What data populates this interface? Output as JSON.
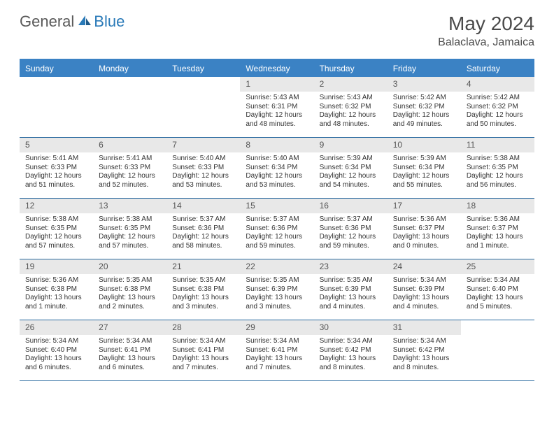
{
  "brand": {
    "part1": "General",
    "part2": "Blue"
  },
  "title": "May 2024",
  "location": "Balaclava, Jamaica",
  "colors": {
    "header_bar": "#3b82c4",
    "week_border": "#2a6aa0",
    "daynum_bg": "#e8e8e8",
    "text": "#333333",
    "title_text": "#4a4a4a",
    "brand_gray": "#5a5a5a",
    "brand_blue": "#2a7ab8"
  },
  "typography": {
    "title_fontsize": 28,
    "location_fontsize": 16,
    "dayname_fontsize": 12,
    "daynum_fontsize": 12,
    "body_fontsize": 10
  },
  "daynames": [
    "Sunday",
    "Monday",
    "Tuesday",
    "Wednesday",
    "Thursday",
    "Friday",
    "Saturday"
  ],
  "weeks": [
    [
      {
        "num": "",
        "sunrise": "",
        "sunset": "",
        "daylight": ""
      },
      {
        "num": "",
        "sunrise": "",
        "sunset": "",
        "daylight": ""
      },
      {
        "num": "",
        "sunrise": "",
        "sunset": "",
        "daylight": ""
      },
      {
        "num": "1",
        "sunrise": "Sunrise: 5:43 AM",
        "sunset": "Sunset: 6:31 PM",
        "daylight": "Daylight: 12 hours and 48 minutes."
      },
      {
        "num": "2",
        "sunrise": "Sunrise: 5:43 AM",
        "sunset": "Sunset: 6:32 PM",
        "daylight": "Daylight: 12 hours and 48 minutes."
      },
      {
        "num": "3",
        "sunrise": "Sunrise: 5:42 AM",
        "sunset": "Sunset: 6:32 PM",
        "daylight": "Daylight: 12 hours and 49 minutes."
      },
      {
        "num": "4",
        "sunrise": "Sunrise: 5:42 AM",
        "sunset": "Sunset: 6:32 PM",
        "daylight": "Daylight: 12 hours and 50 minutes."
      }
    ],
    [
      {
        "num": "5",
        "sunrise": "Sunrise: 5:41 AM",
        "sunset": "Sunset: 6:33 PM",
        "daylight": "Daylight: 12 hours and 51 minutes."
      },
      {
        "num": "6",
        "sunrise": "Sunrise: 5:41 AM",
        "sunset": "Sunset: 6:33 PM",
        "daylight": "Daylight: 12 hours and 52 minutes."
      },
      {
        "num": "7",
        "sunrise": "Sunrise: 5:40 AM",
        "sunset": "Sunset: 6:33 PM",
        "daylight": "Daylight: 12 hours and 53 minutes."
      },
      {
        "num": "8",
        "sunrise": "Sunrise: 5:40 AM",
        "sunset": "Sunset: 6:34 PM",
        "daylight": "Daylight: 12 hours and 53 minutes."
      },
      {
        "num": "9",
        "sunrise": "Sunrise: 5:39 AM",
        "sunset": "Sunset: 6:34 PM",
        "daylight": "Daylight: 12 hours and 54 minutes."
      },
      {
        "num": "10",
        "sunrise": "Sunrise: 5:39 AM",
        "sunset": "Sunset: 6:34 PM",
        "daylight": "Daylight: 12 hours and 55 minutes."
      },
      {
        "num": "11",
        "sunrise": "Sunrise: 5:38 AM",
        "sunset": "Sunset: 6:35 PM",
        "daylight": "Daylight: 12 hours and 56 minutes."
      }
    ],
    [
      {
        "num": "12",
        "sunrise": "Sunrise: 5:38 AM",
        "sunset": "Sunset: 6:35 PM",
        "daylight": "Daylight: 12 hours and 57 minutes."
      },
      {
        "num": "13",
        "sunrise": "Sunrise: 5:38 AM",
        "sunset": "Sunset: 6:35 PM",
        "daylight": "Daylight: 12 hours and 57 minutes."
      },
      {
        "num": "14",
        "sunrise": "Sunrise: 5:37 AM",
        "sunset": "Sunset: 6:36 PM",
        "daylight": "Daylight: 12 hours and 58 minutes."
      },
      {
        "num": "15",
        "sunrise": "Sunrise: 5:37 AM",
        "sunset": "Sunset: 6:36 PM",
        "daylight": "Daylight: 12 hours and 59 minutes."
      },
      {
        "num": "16",
        "sunrise": "Sunrise: 5:37 AM",
        "sunset": "Sunset: 6:36 PM",
        "daylight": "Daylight: 12 hours and 59 minutes."
      },
      {
        "num": "17",
        "sunrise": "Sunrise: 5:36 AM",
        "sunset": "Sunset: 6:37 PM",
        "daylight": "Daylight: 13 hours and 0 minutes."
      },
      {
        "num": "18",
        "sunrise": "Sunrise: 5:36 AM",
        "sunset": "Sunset: 6:37 PM",
        "daylight": "Daylight: 13 hours and 1 minute."
      }
    ],
    [
      {
        "num": "19",
        "sunrise": "Sunrise: 5:36 AM",
        "sunset": "Sunset: 6:38 PM",
        "daylight": "Daylight: 13 hours and 1 minute."
      },
      {
        "num": "20",
        "sunrise": "Sunrise: 5:35 AM",
        "sunset": "Sunset: 6:38 PM",
        "daylight": "Daylight: 13 hours and 2 minutes."
      },
      {
        "num": "21",
        "sunrise": "Sunrise: 5:35 AM",
        "sunset": "Sunset: 6:38 PM",
        "daylight": "Daylight: 13 hours and 3 minutes."
      },
      {
        "num": "22",
        "sunrise": "Sunrise: 5:35 AM",
        "sunset": "Sunset: 6:39 PM",
        "daylight": "Daylight: 13 hours and 3 minutes."
      },
      {
        "num": "23",
        "sunrise": "Sunrise: 5:35 AM",
        "sunset": "Sunset: 6:39 PM",
        "daylight": "Daylight: 13 hours and 4 minutes."
      },
      {
        "num": "24",
        "sunrise": "Sunrise: 5:34 AM",
        "sunset": "Sunset: 6:39 PM",
        "daylight": "Daylight: 13 hours and 4 minutes."
      },
      {
        "num": "25",
        "sunrise": "Sunrise: 5:34 AM",
        "sunset": "Sunset: 6:40 PM",
        "daylight": "Daylight: 13 hours and 5 minutes."
      }
    ],
    [
      {
        "num": "26",
        "sunrise": "Sunrise: 5:34 AM",
        "sunset": "Sunset: 6:40 PM",
        "daylight": "Daylight: 13 hours and 6 minutes."
      },
      {
        "num": "27",
        "sunrise": "Sunrise: 5:34 AM",
        "sunset": "Sunset: 6:41 PM",
        "daylight": "Daylight: 13 hours and 6 minutes."
      },
      {
        "num": "28",
        "sunrise": "Sunrise: 5:34 AM",
        "sunset": "Sunset: 6:41 PM",
        "daylight": "Daylight: 13 hours and 7 minutes."
      },
      {
        "num": "29",
        "sunrise": "Sunrise: 5:34 AM",
        "sunset": "Sunset: 6:41 PM",
        "daylight": "Daylight: 13 hours and 7 minutes."
      },
      {
        "num": "30",
        "sunrise": "Sunrise: 5:34 AM",
        "sunset": "Sunset: 6:42 PM",
        "daylight": "Daylight: 13 hours and 8 minutes."
      },
      {
        "num": "31",
        "sunrise": "Sunrise: 5:34 AM",
        "sunset": "Sunset: 6:42 PM",
        "daylight": "Daylight: 13 hours and 8 minutes."
      },
      {
        "num": "",
        "sunrise": "",
        "sunset": "",
        "daylight": ""
      }
    ]
  ]
}
